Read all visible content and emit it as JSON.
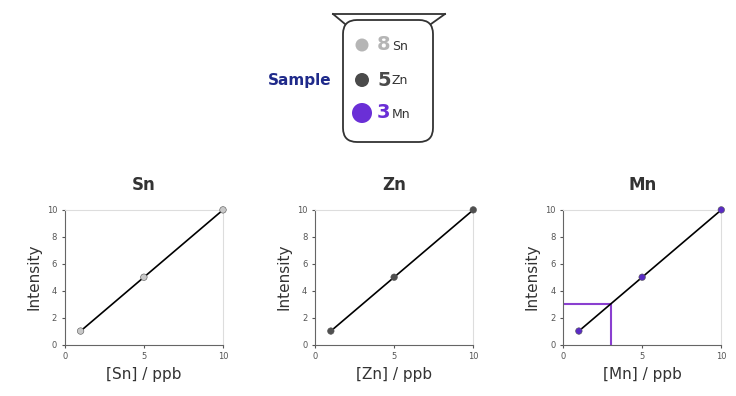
{
  "sample": {
    "label": "Sample",
    "label_color": "#1f2a8a",
    "items": [
      {
        "count": 8,
        "element": "Sn",
        "color": "#b5b5b5"
      },
      {
        "count": 5,
        "element": "Zn",
        "color": "#4a4a4a"
      },
      {
        "count": 3,
        "element": "Mn",
        "color": "#6a2fd6"
      }
    ]
  },
  "chart_data": [
    {
      "type": "line",
      "title": "Sn",
      "x_label": "[Sn] / ppb",
      "y_label": "Intensity",
      "x": [
        1,
        5,
        10
      ],
      "values": [
        1,
        5,
        10
      ],
      "color": "#000000",
      "colors": [
        "#c8c8c8",
        "#c8c8c8",
        "#c8c8c8"
      ],
      "marker": "o",
      "xlim": [
        0,
        10
      ],
      "ylim": [
        0,
        10
      ],
      "xticks": [
        0,
        5,
        10
      ],
      "yticks": [
        0,
        2,
        4,
        6,
        8,
        10
      ]
    },
    {
      "type": "line",
      "title": "Zn",
      "x_label": "[Zn] / ppb",
      "y_label": "Intensity",
      "x": [
        1,
        5,
        10
      ],
      "values": [
        1,
        5,
        10
      ],
      "color": "#000000",
      "colors": [
        "#505050",
        "#505050",
        "#505050"
      ],
      "marker": "o",
      "xlim": [
        0,
        10
      ],
      "ylim": [
        0,
        10
      ],
      "xticks": [
        0,
        5,
        10
      ],
      "yticks": [
        0,
        2,
        4,
        6,
        8,
        10
      ]
    },
    {
      "type": "line",
      "title": "Mn",
      "x_label": "[Mn] / ppb",
      "y_label": "Intensity",
      "x": [
        1,
        5,
        10
      ],
      "values": [
        1,
        5,
        10
      ],
      "color": "#000000",
      "colors": [
        "#5a2bc4",
        "#5a2bc4",
        "#5a2bc4"
      ],
      "marker": "o",
      "xlim": [
        0,
        10
      ],
      "ylim": [
        0,
        10
      ],
      "xticks": [
        0,
        5,
        10
      ],
      "yticks": [
        0,
        2,
        4,
        6,
        8,
        10
      ],
      "reading": {
        "x": 3,
        "y": 3,
        "color": "#8a3fd0"
      }
    }
  ]
}
